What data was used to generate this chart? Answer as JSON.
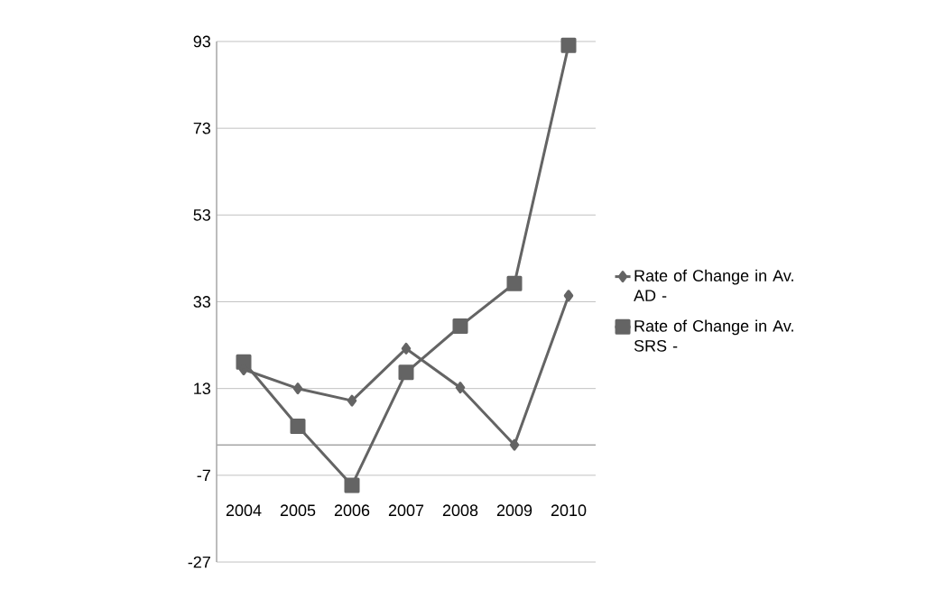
{
  "chart_data": {
    "type": "line",
    "categories": [
      "2004",
      "2005",
      "2006",
      "2007",
      "2008",
      "2009",
      "2010"
    ],
    "series": [
      {
        "name": "Rate of Change in Av. AD -",
        "color": "#646464",
        "marker": "diamond",
        "values": [
          17.4,
          13,
          10.2,
          22.2,
          13.2,
          0,
          34.4
        ]
      },
      {
        "name": "Rate of Change in Av. SRS -",
        "color": "#646464",
        "marker": "square",
        "values": [
          19.1,
          4.3,
          -9.3,
          16.7,
          27.4,
          37.2,
          92.1
        ]
      }
    ],
    "ylim": [
      -27,
      93
    ],
    "yticks": [
      -27,
      -7,
      13,
      33,
      53,
      73,
      93
    ],
    "grid": "y",
    "legend": "right",
    "line_style": "solid"
  }
}
